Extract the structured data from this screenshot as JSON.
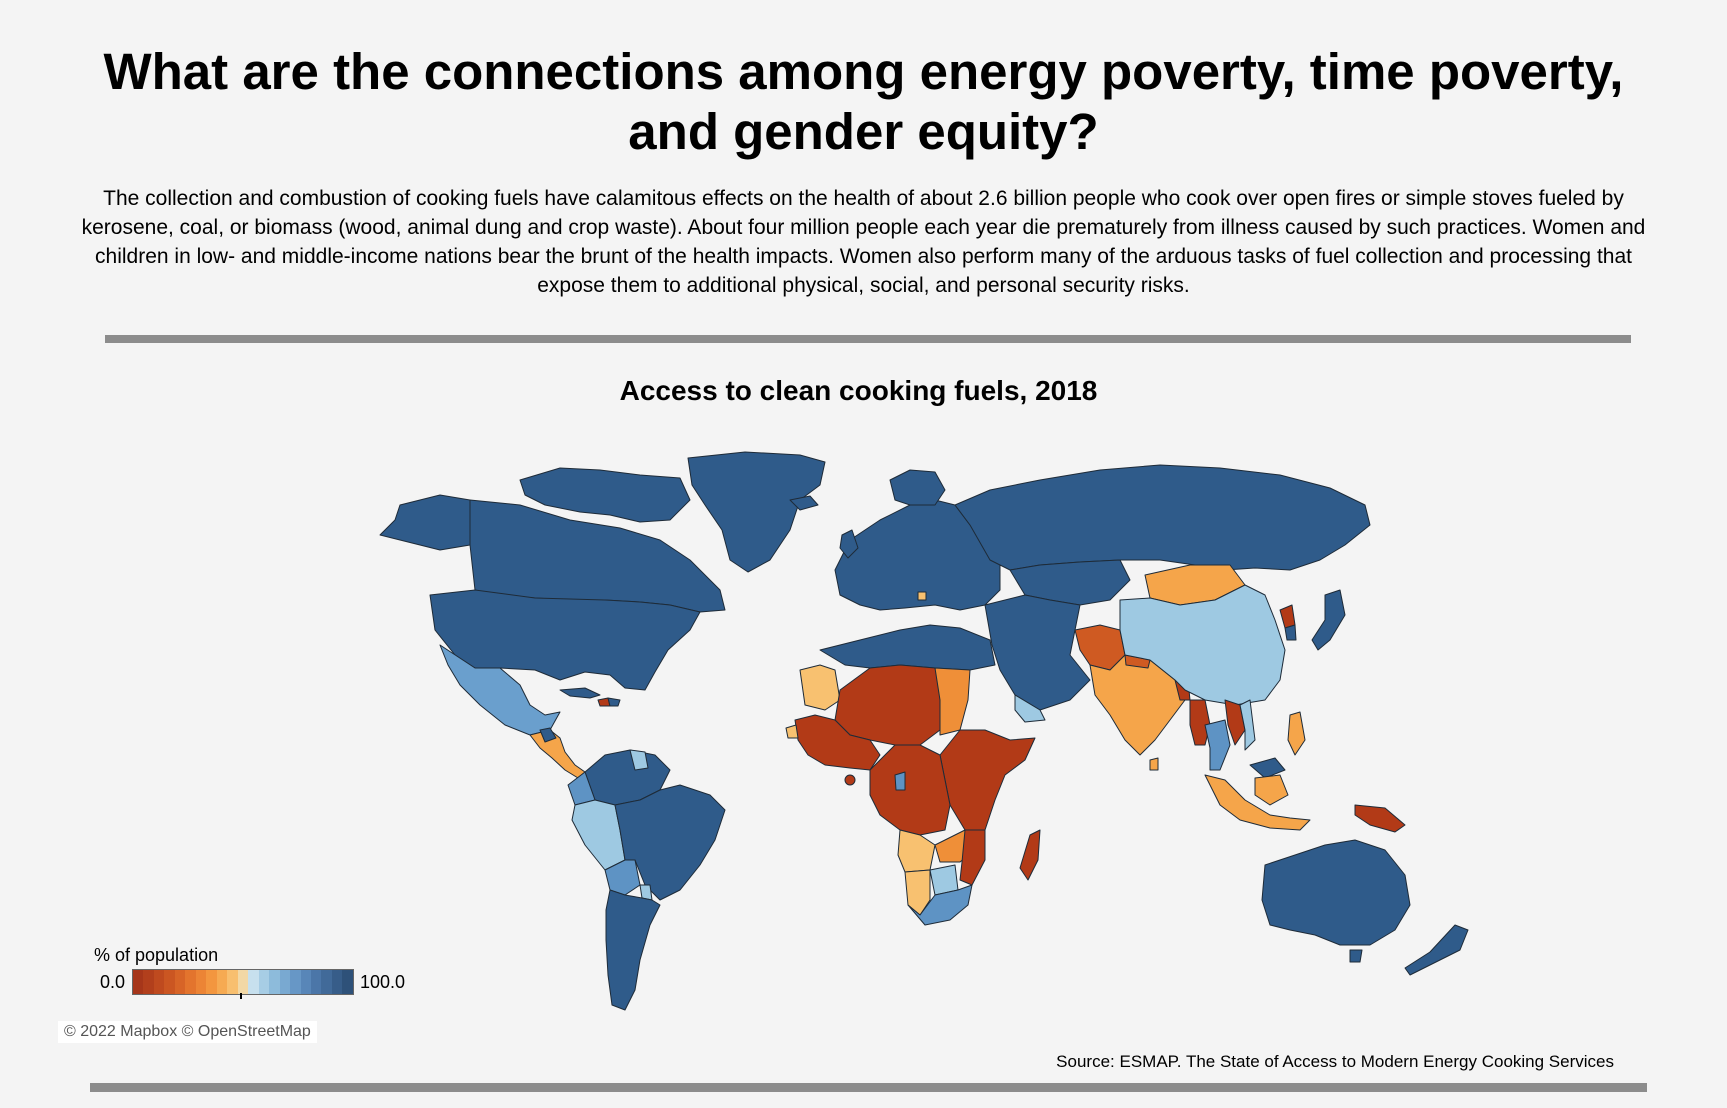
{
  "header": {
    "title": "What are the connections among energy poverty, time poverty, and gender equity?",
    "intro": "The collection and combustion of cooking fuels have calamitous effects on the health of about 2.6 billion people who cook over open fires or simple stoves fueled by kerosene, coal, or biomass (wood, animal dung and crop waste). About four million people each year die prematurely from illness caused by such practices. Women and children in low- and middle-income nations bear the brunt of the health impacts. Women also perform many of the arduous tasks of fuel collection and processing that expose them to additional physical, social, and personal security risks."
  },
  "map": {
    "title": "Access to clean cooking fuels, 2018",
    "attribution": "© 2022 Mapbox © OpenStreetMap",
    "source": "Source: ESMAP. The State of Access to Modern Energy Cooking Services",
    "colors": {
      "very_low": "#b23a17",
      "low": "#cf5a22",
      "mid_low": "#ef8f38",
      "lower_mid": "#f5a54a",
      "mid": "#f8c170",
      "upper_mid": "#9ec9e2",
      "mid_high": "#5e93c4",
      "high": "#2f5b8a",
      "ocean": "#f4f4f4",
      "border": "#1e2b38"
    },
    "legend": {
      "title": "% of population",
      "min_label": "0.0",
      "max_label": "100.0",
      "scale": [
        "#a6361a",
        "#b23f1c",
        "#bf4a1f",
        "#cb5622",
        "#d76427",
        "#e3742d",
        "#ec8435",
        "#f3963f",
        "#f6aa52",
        "#f8bf6f",
        "#f2d8a6",
        "#c7e0ee",
        "#a7cde5",
        "#8dbbdb",
        "#79a9d1",
        "#6797c6",
        "#5886b8",
        "#4b76a8",
        "#416a99",
        "#375d89",
        "#2e5179"
      ]
    }
  }
}
